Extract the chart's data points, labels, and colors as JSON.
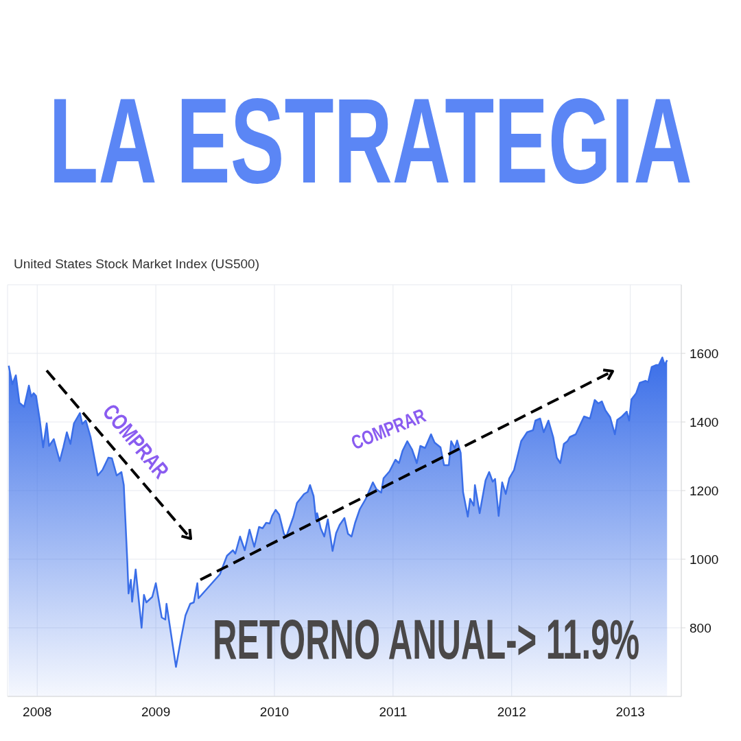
{
  "chart_data": {
    "type": "area",
    "title": "LA ESTRATEGIA",
    "subtitle": "United States Stock Market Index (US500)",
    "annotations": [
      "COMPRAR",
      "COMPRAR",
      "RETORNO ANUAL-> 11.9%"
    ],
    "x": [
      2007.76,
      2007.79,
      2007.82,
      2007.85,
      2007.89,
      2007.93,
      2007.95,
      2007.97,
      2007.99,
      2008.02,
      2008.05,
      2008.08,
      2008.1,
      2008.14,
      2008.19,
      2008.22,
      2008.25,
      2008.28,
      2008.31,
      2008.36,
      2008.38,
      2008.41,
      2008.45,
      2008.51,
      2008.55,
      2008.6,
      2008.63,
      2008.67,
      2008.71,
      2008.73,
      2008.76,
      2008.77,
      2008.79,
      2008.8,
      2008.83,
      2008.88,
      2008.9,
      2008.92,
      2008.97,
      2009.0,
      2009.05,
      2009.08,
      2009.09,
      2009.17,
      2009.21,
      2009.25,
      2009.29,
      2009.32,
      2009.35,
      2009.36,
      2009.54,
      2009.6,
      2009.65,
      2009.67,
      2009.71,
      2009.75,
      2009.79,
      2009.83,
      2009.87,
      2009.9,
      2009.93,
      2009.96,
      2009.98,
      2010.01,
      2010.04,
      2010.08,
      2010.1,
      2010.16,
      2010.19,
      2010.25,
      2010.28,
      2010.3,
      2010.33,
      2010.35,
      2010.36,
      2010.39,
      2010.42,
      2010.45,
      2010.49,
      2010.52,
      2010.55,
      2010.59,
      2010.62,
      2010.65,
      2010.68,
      2010.72,
      2010.77,
      2010.83,
      2010.86,
      2010.9,
      2010.92,
      2010.97,
      2011.02,
      2011.05,
      2011.08,
      2011.12,
      2011.16,
      2011.2,
      2011.23,
      2011.27,
      2011.32,
      2011.35,
      2011.4,
      2011.43,
      2011.47,
      2011.49,
      2011.52,
      2011.54,
      2011.57,
      2011.59,
      2011.63,
      2011.65,
      2011.68,
      2011.69,
      2011.73,
      2011.78,
      2011.81,
      2011.84,
      2011.86,
      2011.89,
      2011.92,
      2011.95,
      2011.98,
      2012.02,
      2012.08,
      2012.13,
      2012.18,
      2012.2,
      2012.24,
      2012.27,
      2012.31,
      2012.35,
      2012.38,
      2012.41,
      2012.44,
      2012.47,
      2012.49,
      2012.54,
      2012.61,
      2012.66,
      2012.7,
      2012.73,
      2012.76,
      2012.79,
      2012.83,
      2012.87,
      2012.89,
      2012.93,
      2012.97,
      2012.99,
      2013.01,
      2013.05,
      2013.08,
      2013.13,
      2013.15,
      2013.18,
      2013.22,
      2013.24,
      2013.27,
      2013.29,
      2013.31
    ],
    "series": [
      {
        "color": "#3a6ee8",
        "values": [
          1564,
          1510,
          1536,
          1456,
          1444,
          1506,
          1474,
          1484,
          1476,
          1410,
          1326,
          1396,
          1330,
          1350,
          1286,
          1326,
          1370,
          1336,
          1396,
          1426,
          1394,
          1404,
          1356,
          1244,
          1260,
          1296,
          1294,
          1244,
          1254,
          1216,
          990,
          900,
          940,
          876,
          970,
          800,
          896,
          874,
          890,
          930,
          830,
          824,
          870,
          686,
          764,
          836,
          870,
          874,
          930,
          886,
          956,
          1010,
          1026,
          1016,
          1066,
          1026,
          1086,
          1036,
          1094,
          1090,
          1106,
          1104,
          1126,
          1144,
          1130,
          1074,
          1066,
          1124,
          1164,
          1190,
          1196,
          1216,
          1184,
          1116,
          1134,
          1090,
          1066,
          1116,
          1024,
          1076,
          1100,
          1120,
          1074,
          1066,
          1106,
          1146,
          1176,
          1224,
          1204,
          1194,
          1236,
          1256,
          1290,
          1280,
          1316,
          1344,
          1320,
          1280,
          1330,
          1324,
          1364,
          1340,
          1326,
          1274,
          1274,
          1344,
          1324,
          1346,
          1310,
          1196,
          1124,
          1176,
          1156,
          1216,
          1134,
          1230,
          1254,
          1226,
          1234,
          1126,
          1224,
          1190,
          1236,
          1260,
          1344,
          1370,
          1376,
          1404,
          1410,
          1370,
          1404,
          1356,
          1296,
          1280,
          1336,
          1344,
          1356,
          1364,
          1416,
          1410,
          1464,
          1454,
          1460,
          1434,
          1414,
          1364,
          1406,
          1416,
          1430,
          1404,
          1466,
          1484,
          1514,
          1520,
          1516,
          1560,
          1566,
          1566,
          1588,
          1566,
          1580
        ]
      }
    ],
    "xlim": [
      2007.75,
      2013.43
    ],
    "xticks": [
      2008,
      2009,
      2010,
      2011,
      2012,
      2013
    ],
    "ylim": [
      600,
      1800
    ],
    "yticks": [
      800,
      1000,
      1200,
      1400,
      1600
    ],
    "grid": true
  }
}
